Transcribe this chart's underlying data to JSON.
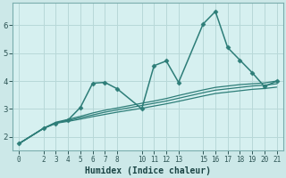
{
  "background_color": "#cce8e8",
  "plot_bg_color": "#d6f0f0",
  "grid_color": "#b8d8d8",
  "line_color": "#2d7d78",
  "outer_bg": "#c8e4e4",
  "xlabel": "Humidex (Indice chaleur)",
  "ylim": [
    1.5,
    6.8
  ],
  "xlim": [
    -0.5,
    21.5
  ],
  "xticks": [
    0,
    2,
    3,
    4,
    5,
    6,
    7,
    8,
    10,
    11,
    12,
    13,
    15,
    16,
    17,
    18,
    19,
    20,
    21
  ],
  "yticks": [
    2,
    3,
    4,
    5,
    6
  ],
  "lines": [
    {
      "x": [
        0,
        2,
        3,
        4,
        5,
        6,
        7,
        8,
        10,
        11,
        12,
        13,
        15,
        16,
        17,
        18,
        19,
        20,
        21
      ],
      "y": [
        1.75,
        2.3,
        2.48,
        2.6,
        3.05,
        3.92,
        3.95,
        3.72,
        3.0,
        4.55,
        4.72,
        3.95,
        6.05,
        6.5,
        5.2,
        4.75,
        4.3,
        3.8,
        4.0
      ],
      "marker": "D",
      "markersize": 2.5,
      "linewidth": 1.1
    },
    {
      "x": [
        0,
        2,
        3,
        4,
        5,
        6,
        7,
        8,
        10,
        11,
        12,
        13,
        15,
        16,
        17,
        18,
        19,
        20,
        21
      ],
      "y": [
        1.75,
        2.3,
        2.48,
        2.55,
        2.63,
        2.72,
        2.8,
        2.88,
        3.02,
        3.1,
        3.18,
        3.27,
        3.46,
        3.55,
        3.6,
        3.65,
        3.7,
        3.73,
        3.78
      ],
      "marker": null,
      "linewidth": 0.9
    },
    {
      "x": [
        0,
        2,
        3,
        4,
        5,
        6,
        7,
        8,
        10,
        11,
        12,
        13,
        15,
        16,
        17,
        18,
        19,
        20,
        21
      ],
      "y": [
        1.75,
        2.3,
        2.5,
        2.58,
        2.68,
        2.78,
        2.88,
        2.96,
        3.12,
        3.2,
        3.28,
        3.38,
        3.58,
        3.67,
        3.72,
        3.77,
        3.82,
        3.85,
        3.9
      ],
      "marker": null,
      "linewidth": 0.9
    },
    {
      "x": [
        0,
        2,
        3,
        4,
        5,
        6,
        7,
        8,
        10,
        11,
        12,
        13,
        15,
        16,
        17,
        18,
        19,
        20,
        21
      ],
      "y": [
        1.75,
        2.3,
        2.52,
        2.62,
        2.73,
        2.85,
        2.95,
        3.03,
        3.2,
        3.28,
        3.37,
        3.48,
        3.68,
        3.77,
        3.82,
        3.87,
        3.9,
        3.93,
        4.0
      ],
      "marker": null,
      "linewidth": 0.9
    }
  ]
}
